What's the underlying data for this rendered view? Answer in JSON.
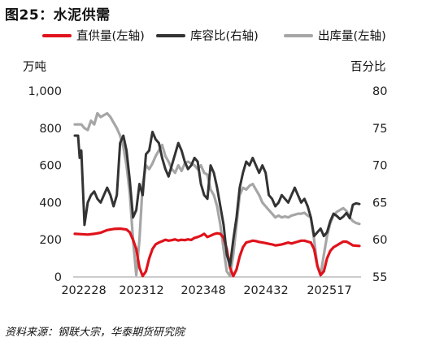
{
  "figure_title": "图25：水泥供需",
  "source_note": "资料来源：钢联大宗，华泰期货研究院",
  "legend": {
    "items": [
      {
        "label": "直供量(左轴)",
        "color": "#e0121b"
      },
      {
        "label": "库容比(右轴)",
        "color": "#333333"
      },
      {
        "label": "出库量(左轴)",
        "color": "#a6a6a6"
      }
    ]
  },
  "chart_data": {
    "type": "line",
    "left_unit": "万吨",
    "right_unit": "百分比",
    "left_ylim": [
      0,
      1000
    ],
    "right_ylim": [
      55,
      80
    ],
    "left_ticks": [
      "0",
      "200",
      "400",
      "600",
      "800",
      "1,000"
    ],
    "right_ticks": [
      "55",
      "60",
      "65",
      "70",
      "75",
      "80"
    ],
    "x_ticks": [
      "202228",
      "202312",
      "202348",
      "202432",
      "202517"
    ],
    "grid": false,
    "legend_position": "top",
    "series": [
      {
        "name": "直供量(左轴)",
        "axis": "left",
        "color": "#e0121b",
        "points": [
          [
            0,
            232
          ],
          [
            2,
            230
          ],
          [
            4,
            228
          ],
          [
            6,
            232
          ],
          [
            8,
            238
          ],
          [
            9,
            245
          ],
          [
            10,
            252
          ],
          [
            12,
            258
          ],
          [
            14,
            260
          ],
          [
            16,
            255
          ],
          [
            17,
            240
          ],
          [
            18,
            200
          ],
          [
            19,
            150
          ],
          [
            20,
            50
          ],
          [
            21,
            5
          ],
          [
            22,
            30
          ],
          [
            23,
            100
          ],
          [
            24,
            150
          ],
          [
            25,
            175
          ],
          [
            26,
            185
          ],
          [
            27,
            192
          ],
          [
            28,
            200
          ],
          [
            29,
            195
          ],
          [
            30,
            198
          ],
          [
            31,
            202
          ],
          [
            32,
            196
          ],
          [
            33,
            200
          ],
          [
            34,
            198
          ],
          [
            35,
            202
          ],
          [
            36,
            199
          ],
          [
            37,
            210
          ],
          [
            38,
            215
          ],
          [
            39,
            222
          ],
          [
            40,
            232
          ],
          [
            41,
            215
          ],
          [
            42,
            222
          ],
          [
            43,
            230
          ],
          [
            44,
            235
          ],
          [
            45,
            232
          ],
          [
            46,
            210
          ],
          [
            47,
            150
          ],
          [
            48,
            50
          ],
          [
            49,
            5
          ],
          [
            50,
            40
          ],
          [
            51,
            110
          ],
          [
            52,
            160
          ],
          [
            53,
            185
          ],
          [
            54,
            190
          ],
          [
            55,
            195
          ],
          [
            56,
            193
          ],
          [
            57,
            188
          ],
          [
            58,
            185
          ],
          [
            59,
            182
          ],
          [
            60,
            178
          ],
          [
            61,
            175
          ],
          [
            62,
            170
          ],
          [
            63,
            172
          ],
          [
            64,
            175
          ],
          [
            65,
            180
          ],
          [
            66,
            185
          ],
          [
            67,
            180
          ],
          [
            68,
            185
          ],
          [
            69,
            190
          ],
          [
            70,
            195
          ],
          [
            71,
            195
          ],
          [
            72,
            190
          ],
          [
            73,
            185
          ],
          [
            74,
            150
          ],
          [
            75,
            60
          ],
          [
            76,
            10
          ],
          [
            77,
            30
          ],
          [
            78,
            100
          ],
          [
            79,
            140
          ],
          [
            80,
            160
          ],
          [
            81,
            170
          ],
          [
            82,
            180
          ],
          [
            83,
            190
          ],
          [
            84,
            190
          ],
          [
            85,
            180
          ],
          [
            86,
            170
          ],
          [
            87,
            168
          ],
          [
            88,
            167
          ]
        ]
      },
      {
        "name": "库容比(右轴)",
        "axis": "right",
        "color": "#333333",
        "points": [
          [
            0,
            74
          ],
          [
            1,
            74
          ],
          [
            1.5,
            71
          ],
          [
            2,
            72
          ],
          [
            3,
            62
          ],
          [
            4,
            65
          ],
          [
            5,
            66
          ],
          [
            6,
            66.5
          ],
          [
            7,
            65.5
          ],
          [
            8,
            65
          ],
          [
            9,
            66
          ],
          [
            10,
            67
          ],
          [
            11,
            66
          ],
          [
            12,
            64.5
          ],
          [
            13,
            66
          ],
          [
            14,
            73
          ],
          [
            15,
            74
          ],
          [
            16,
            72
          ],
          [
            17,
            68
          ],
          [
            18,
            63
          ],
          [
            19,
            64
          ],
          [
            20,
            67.5
          ],
          [
            21,
            66
          ],
          [
            22,
            71.5
          ],
          [
            23,
            72
          ],
          [
            24,
            74.5
          ],
          [
            25,
            73.5
          ],
          [
            26,
            73
          ],
          [
            27,
            71
          ],
          [
            28,
            69.5
          ],
          [
            29,
            68.5
          ],
          [
            30,
            70
          ],
          [
            31,
            71.5
          ],
          [
            32,
            73
          ],
          [
            33,
            72
          ],
          [
            34,
            70.5
          ],
          [
            35,
            69.5
          ],
          [
            36,
            70
          ],
          [
            37,
            71
          ],
          [
            38,
            70.5
          ],
          [
            39,
            67.5
          ],
          [
            40,
            66
          ],
          [
            41,
            65.5
          ],
          [
            42,
            70
          ],
          [
            43,
            69
          ],
          [
            44,
            67
          ],
          [
            45,
            64.5
          ],
          [
            46,
            62
          ],
          [
            47,
            58
          ],
          [
            48,
            56.5
          ],
          [
            49,
            60
          ],
          [
            50,
            63
          ],
          [
            51,
            67
          ],
          [
            52,
            69
          ],
          [
            53,
            70.5
          ],
          [
            54,
            70
          ],
          [
            55,
            71
          ],
          [
            56,
            70
          ],
          [
            57,
            69
          ],
          [
            58,
            70
          ],
          [
            59,
            69
          ],
          [
            60,
            66
          ],
          [
            61,
            65.5
          ],
          [
            62,
            64.5
          ],
          [
            63,
            65
          ],
          [
            64,
            66
          ],
          [
            65,
            65.5
          ],
          [
            66,
            65
          ],
          [
            67,
            66
          ],
          [
            68,
            67
          ],
          [
            69,
            66
          ],
          [
            70,
            65
          ],
          [
            71,
            65.5
          ],
          [
            72,
            64.5
          ],
          [
            73,
            63
          ],
          [
            74,
            60.5
          ],
          [
            75,
            61
          ],
          [
            76,
            61.5
          ],
          [
            77,
            60.5
          ],
          [
            78,
            61
          ],
          [
            79,
            62.5
          ],
          [
            80,
            63.5
          ],
          [
            81,
            63.2
          ],
          [
            82,
            62.8
          ],
          [
            83,
            63.1
          ],
          [
            84,
            63.6
          ],
          [
            85,
            62.9
          ],
          [
            86,
            64.7
          ],
          [
            87,
            64.9
          ],
          [
            88,
            64.8
          ]
        ]
      },
      {
        "name": "出库量(左轴)",
        "axis": "left",
        "color": "#a6a6a6",
        "points": [
          [
            0,
            820
          ],
          [
            2,
            820
          ],
          [
            3,
            800
          ],
          [
            4,
            790
          ],
          [
            5,
            840
          ],
          [
            6,
            820
          ],
          [
            7,
            880
          ],
          [
            8,
            860
          ],
          [
            9,
            870
          ],
          [
            10,
            880
          ],
          [
            11,
            860
          ],
          [
            12,
            830
          ],
          [
            13,
            800
          ],
          [
            14,
            760
          ],
          [
            15,
            700
          ],
          [
            16,
            600
          ],
          [
            17,
            450
          ],
          [
            18,
            200
          ],
          [
            19,
            10
          ],
          [
            20,
            200
          ],
          [
            21,
            500
          ],
          [
            22,
            600
          ],
          [
            23,
            580
          ],
          [
            24,
            610
          ],
          [
            25,
            650
          ],
          [
            26,
            680
          ],
          [
            27,
            710
          ],
          [
            28,
            650
          ],
          [
            29,
            620
          ],
          [
            30,
            580
          ],
          [
            31,
            560
          ],
          [
            32,
            600
          ],
          [
            33,
            570
          ],
          [
            34,
            610
          ],
          [
            35,
            620
          ],
          [
            36,
            610
          ],
          [
            37,
            600
          ],
          [
            38,
            580
          ],
          [
            39,
            600
          ],
          [
            40,
            560
          ],
          [
            41,
            550
          ],
          [
            42,
            470
          ],
          [
            43,
            440
          ],
          [
            44,
            380
          ],
          [
            45,
            280
          ],
          [
            46,
            150
          ],
          [
            47,
            30
          ],
          [
            48,
            5
          ],
          [
            49,
            120
          ],
          [
            50,
            280
          ],
          [
            51,
            440
          ],
          [
            52,
            480
          ],
          [
            53,
            470
          ],
          [
            54,
            490
          ],
          [
            55,
            500
          ],
          [
            56,
            470
          ],
          [
            57,
            440
          ],
          [
            58,
            400
          ],
          [
            59,
            380
          ],
          [
            60,
            360
          ],
          [
            61,
            340
          ],
          [
            62,
            320
          ],
          [
            63,
            330
          ],
          [
            64,
            320
          ],
          [
            65,
            325
          ],
          [
            66,
            320
          ],
          [
            67,
            330
          ],
          [
            68,
            335
          ],
          [
            69,
            340
          ],
          [
            70,
            340
          ],
          [
            71,
            345
          ],
          [
            72,
            330
          ],
          [
            73,
            320
          ],
          [
            74,
            200
          ],
          [
            75,
            60
          ],
          [
            76,
            10
          ],
          [
            77,
            120
          ],
          [
            78,
            220
          ],
          [
            79,
            290
          ],
          [
            80,
            330
          ],
          [
            81,
            350
          ],
          [
            82,
            360
          ],
          [
            83,
            370
          ],
          [
            84,
            355
          ],
          [
            85,
            320
          ],
          [
            86,
            300
          ],
          [
            87,
            290
          ],
          [
            88,
            285
          ]
        ]
      }
    ]
  }
}
